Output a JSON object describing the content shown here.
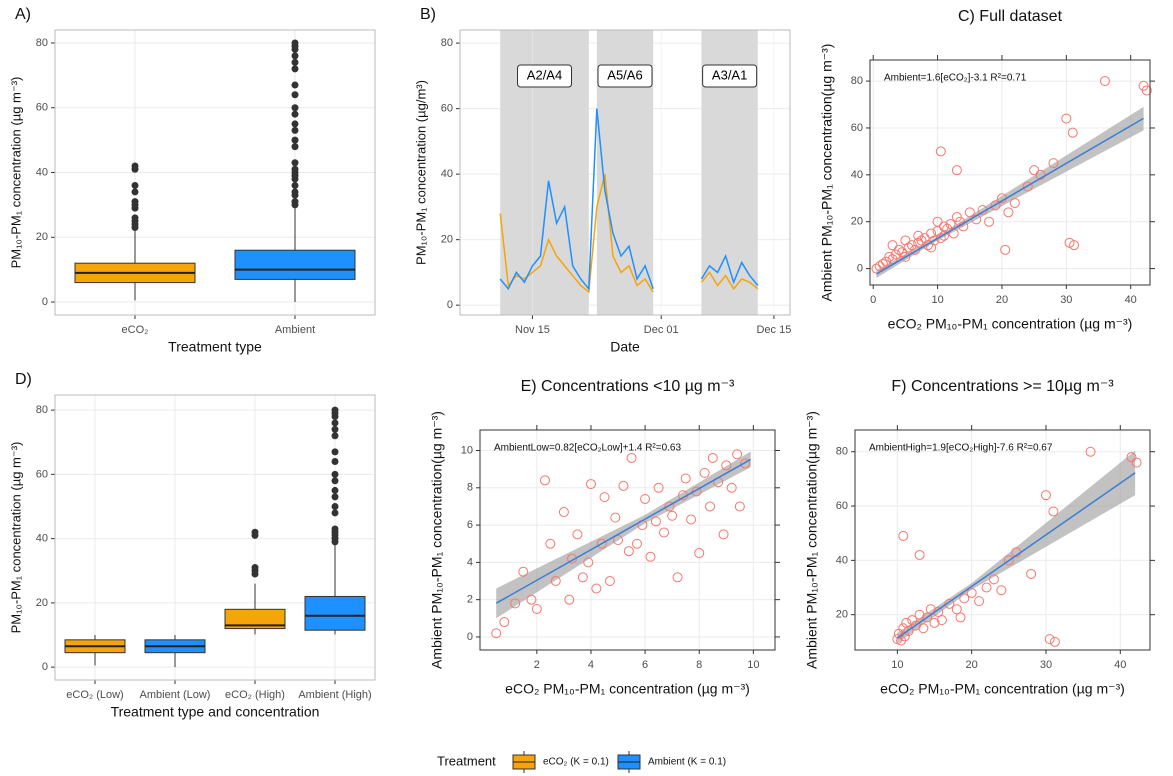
{
  "chart_data": [
    {
      "type": "box",
      "title": "A)",
      "xlabel": "Treatment type",
      "ylabel": "PM₁₀-PM₁ concentration (µg m⁻³)",
      "categories": [
        "eCO₂",
        "Ambient"
      ],
      "colors": [
        "#f5a40a",
        "#1e90ff"
      ],
      "boxes": [
        {
          "min": 0.5,
          "q1": 6,
          "median": 9,
          "q3": 12,
          "max": 22,
          "outliers": [
            23,
            24,
            25,
            26,
            29,
            30,
            31,
            34,
            36,
            41,
            42
          ]
        },
        {
          "min": 0,
          "q1": 7,
          "median": 10,
          "q3": 16,
          "max": 29,
          "outliers": [
            30,
            31,
            33,
            34,
            36,
            38,
            39,
            40,
            41,
            43,
            48,
            50,
            53,
            55,
            58,
            60,
            64,
            67,
            72,
            74,
            76,
            78,
            79,
            80
          ]
        }
      ],
      "ylim": [
        -4,
        84
      ],
      "yticks": [
        0,
        20,
        40,
        60,
        80
      ],
      "grid": true
    },
    {
      "type": "line",
      "title": "B)",
      "xlabel": "Date",
      "ylabel": "PM₁₀-PM₁ concentration (µg/m³)",
      "x": [
        "Nov 11",
        "Nov 12",
        "Nov 13",
        "Nov 14",
        "Nov 15",
        "Nov 16",
        "Nov 17",
        "Nov 18",
        "Nov 19",
        "Nov 20",
        "Nov 21",
        "Nov 22",
        "Nov 23",
        "Nov 24",
        "Nov 25",
        "Nov 26",
        "Nov 27",
        "Nov 28",
        "Nov 29",
        "Nov 30",
        "Dec 03",
        "Dec 06",
        "Dec 07",
        "Dec 08",
        "Dec 09",
        "Dec 10",
        "Dec 11",
        "Dec 12",
        "Dec 13"
      ],
      "series": [
        {
          "name": "eCO₂",
          "color": "#f5a40a",
          "values": [
            28,
            6,
            9,
            8,
            10,
            12,
            20,
            15,
            12,
            9,
            6,
            4,
            30,
            40,
            15,
            10,
            12,
            6,
            8,
            4,
            null,
            7,
            10,
            6,
            9,
            5,
            8,
            7,
            5
          ]
        },
        {
          "name": "Ambient",
          "color": "#1e90ff",
          "values": [
            8,
            5,
            10,
            7,
            12,
            15,
            38,
            25,
            30,
            12,
            8,
            5,
            60,
            35,
            22,
            15,
            18,
            8,
            12,
            5,
            null,
            8,
            12,
            10,
            15,
            7,
            13,
            9,
            6
          ]
        }
      ],
      "periods": [
        {
          "label": "A2/A4",
          "start": "Nov 11",
          "end": "Nov 22"
        },
        {
          "label": "A5/A6",
          "start": "Nov 23",
          "end": "Nov 30"
        },
        {
          "label": "A3/A1",
          "start": "Dec 06",
          "end": "Dec 13"
        }
      ],
      "xlim": [
        "Nov 06",
        "Dec 17"
      ],
      "xticks": [
        "Nov 15",
        "Dec 01",
        "Dec 15"
      ],
      "ylim": [
        -3,
        84
      ],
      "yticks": [
        0,
        20,
        40,
        60,
        80
      ],
      "grid": true
    },
    {
      "type": "scatter",
      "title": "C) Full dataset",
      "xlabel": "eCO₂  PM₁₀-PM₁ concentration (µg m⁻³)",
      "ylabel": "Ambient PM₁₀-PM₁ concentration(µg m⁻³)",
      "annotation": "Ambient=1.6[eCO₂]-3.1 R²=0.71",
      "color": "#f8766d",
      "x": [
        0.5,
        1,
        1.5,
        2,
        2.5,
        3,
        3,
        3.5,
        4,
        4.5,
        5,
        5,
        5.5,
        6,
        6.5,
        7,
        7,
        7.5,
        8,
        8.5,
        9,
        9,
        9.5,
        10,
        10,
        10.5,
        11,
        11,
        11.5,
        12,
        12.5,
        13,
        13.5,
        14,
        15,
        16,
        17,
        18,
        19,
        20,
        21,
        22,
        24,
        25,
        26,
        28,
        30,
        31,
        36,
        42,
        42.5,
        10.5,
        13,
        20.5,
        30.5,
        31.2
      ],
      "y": [
        0,
        1,
        2,
        3,
        5,
        4,
        10,
        6,
        8,
        7,
        5,
        12,
        9,
        10,
        8,
        14,
        11,
        12,
        13,
        10,
        15,
        9,
        12,
        16,
        20,
        13,
        18,
        14,
        17,
        19,
        15,
        22,
        20,
        18,
        24,
        21,
        25,
        20,
        27,
        30,
        24,
        28,
        35,
        42,
        40,
        45,
        64,
        58,
        80,
        78,
        76,
        50,
        42,
        8,
        11,
        10
      ],
      "fit": {
        "color": "#3b7dd8",
        "x": [
          0.5,
          10,
          42
        ],
        "y": [
          -2.3,
          12.9,
          64.1
        ],
        "lower": [
          -4,
          12,
          59
        ],
        "upper": [
          -0.6,
          13.8,
          69
        ]
      },
      "xlim": [
        -0.5,
        43
      ],
      "xticks": [
        0,
        10,
        20,
        30,
        40
      ],
      "ylim": [
        -7,
        89
      ],
      "yticks": [
        0,
        20,
        40,
        60,
        80
      ],
      "grid": true
    },
    {
      "type": "box",
      "title": "D)",
      "xlabel": "Treatment type and concentration",
      "ylabel": "PM₁₀-PM₁ concentration (µg m⁻³)",
      "categories": [
        "eCO₂ (Low)",
        "Ambient (Low)",
        "eCO₂ (High)",
        "Ambient (High)"
      ],
      "colors": [
        "#f5a40a",
        "#1e90ff",
        "#f5a40a",
        "#1e90ff"
      ],
      "boxes": [
        {
          "min": 0.5,
          "q1": 4.5,
          "median": 6.5,
          "q3": 8.5,
          "max": 10,
          "outliers": []
        },
        {
          "min": 0,
          "q1": 4.5,
          "median": 6.5,
          "q3": 8.5,
          "max": 10,
          "outliers": []
        },
        {
          "min": 10.2,
          "q1": 12,
          "median": 13,
          "q3": 18,
          "max": 26,
          "outliers": [
            29,
            30,
            31,
            41,
            42
          ]
        },
        {
          "min": 10.2,
          "q1": 11.5,
          "median": 16,
          "q3": 22,
          "max": 38,
          "outliers": [
            39,
            40,
            41,
            42,
            43,
            48,
            50,
            53,
            55,
            58,
            60,
            64,
            67,
            72,
            74,
            76,
            78,
            79,
            80
          ]
        }
      ],
      "ylim": [
        -4,
        84.7
      ],
      "yticks": [
        0,
        20,
        40,
        60,
        80
      ],
      "grid": true
    },
    {
      "type": "scatter",
      "title": "E) Concentrations <10 µg m⁻³",
      "xlabel": "eCO₂  PM₁₀-PM₁ concentration (µg m⁻³)",
      "ylabel": "Ambient PM₁₀-PM₁ concentration(µg m⁻³)",
      "annotation": "AmbientLow=0.82[eCO₂Low]+1.4 R²=0.63",
      "color": "#f8766d",
      "x": [
        0.5,
        0.8,
        1.2,
        1.5,
        1.8,
        2,
        2.3,
        2.5,
        2.7,
        3,
        3.2,
        3.3,
        3.5,
        3.7,
        3.9,
        4,
        4.2,
        4.4,
        4.5,
        4.7,
        4.9,
        5,
        5.2,
        5.4,
        5.5,
        5.7,
        5.9,
        6,
        6.2,
        6.4,
        6.5,
        6.7,
        6.9,
        7,
        7.2,
        7.4,
        7.5,
        7.7,
        7.9,
        8,
        8.2,
        8.4,
        8.5,
        8.7,
        8.9,
        9,
        9.2,
        9.4,
        9.5,
        9.7
      ],
      "y": [
        0.2,
        0.8,
        1.8,
        3.5,
        2,
        1.5,
        8.4,
        5,
        3,
        6.7,
        2,
        4.2,
        5.5,
        3.2,
        4,
        8.2,
        2.6,
        5,
        7.5,
        3,
        6.4,
        5.2,
        8.1,
        4.6,
        9.6,
        5,
        6,
        7.4,
        4.3,
        6.2,
        8,
        5.6,
        7,
        6.5,
        3.2,
        7.6,
        8.5,
        6.3,
        7.8,
        4.5,
        8.8,
        7,
        9.6,
        8.3,
        5.5,
        9.2,
        8,
        9.8,
        7,
        9.3
      ],
      "fit": {
        "color": "#3b7dd8",
        "x": [
          0.5,
          6,
          9.9
        ],
        "y": [
          1.81,
          6.32,
          9.52
        ],
        "lower": [
          1,
          6.1,
          9.1
        ],
        "upper": [
          2.6,
          6.55,
          9.95
        ]
      },
      "xlim": [
        -0.1,
        10.8
      ],
      "xticks": [
        2,
        4,
        6,
        8,
        10
      ],
      "ylim": [
        -0.7,
        11.1
      ],
      "yticks": [
        0,
        2,
        4,
        6,
        8,
        10
      ],
      "grid": true
    },
    {
      "type": "scatter",
      "title": "F) Concentrations >= 10µg m⁻³",
      "xlabel": "eCO₂  PM₁₀-PM₁ concentration (µg m⁻³)",
      "ylabel": "Ambient PM₁₀-PM₁ concentration(µg m⁻³)",
      "annotation": "AmbientHigh=1.9[eCO₂High]-7.6 R²=0.67",
      "color": "#f8766d",
      "x": [
        10,
        10.2,
        10.5,
        10.8,
        11,
        11.2,
        11.5,
        12,
        12.5,
        13,
        13.5,
        14,
        14.5,
        15,
        15.5,
        16,
        17,
        18,
        18.5,
        19,
        20,
        21,
        22,
        23,
        24,
        25,
        26,
        28,
        30,
        30.5,
        31,
        31.2,
        36,
        41.5,
        42.2,
        10.8,
        13
      ],
      "y": [
        11,
        13,
        10.5,
        15,
        12,
        17,
        14,
        18,
        16,
        20,
        15,
        19,
        22,
        17,
        21,
        18,
        24,
        22,
        19,
        26,
        28,
        25,
        30,
        33,
        29,
        40,
        43,
        35,
        64,
        11,
        58,
        10,
        80,
        78,
        76,
        49,
        42
      ],
      "fit": {
        "color": "#3b7dd8",
        "x": [
          10,
          20,
          42
        ],
        "y": [
          11.4,
          30.4,
          72.2
        ],
        "lower": [
          9.5,
          29.2,
          64
        ],
        "upper": [
          13.3,
          31.6,
          80.4
        ]
      },
      "xlim": [
        4.3,
        44
      ],
      "xticks": [
        10,
        20,
        30,
        40
      ],
      "ylim": [
        7,
        88
      ],
      "yticks": [
        20,
        40,
        60,
        80
      ],
      "grid": true
    }
  ],
  "legend": {
    "title": "Treatment",
    "items": [
      {
        "name": "eCO₂ (K = 0.1)",
        "color": "#f5a40a"
      },
      {
        "name": "Ambient (K = 0.1)",
        "color": "#1e90ff"
      }
    ]
  }
}
